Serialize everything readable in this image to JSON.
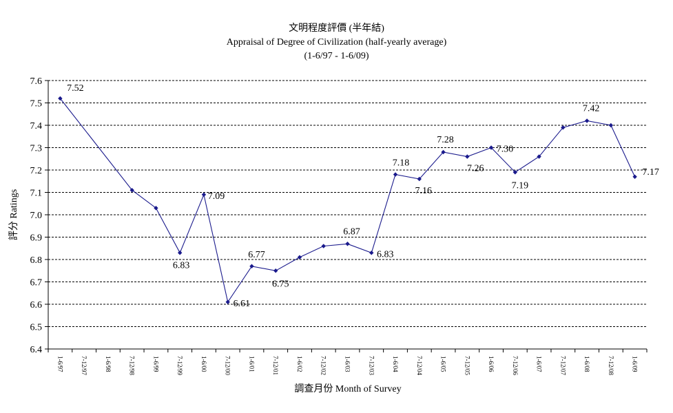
{
  "chart_data": {
    "type": "line",
    "title": "文明程度評價 (半年結)",
    "subtitle": "Appraisal of Degree of Civilization (half-yearly average)",
    "period": "(1-6/97 - 1-6/09)",
    "xlabel": "調查月份 Month of Survey",
    "ylabel": "評分 Ratings",
    "ylim": [
      6.4,
      7.6
    ],
    "yticks": [
      "6.4",
      "6.5",
      "6.6",
      "6.7",
      "6.8",
      "6.9",
      "7.0",
      "7.1",
      "7.2",
      "7.3",
      "7.4",
      "7.5",
      "7.6"
    ],
    "grid": true,
    "categories": [
      "1-6/97",
      "7-12/97",
      "1-6/98",
      "7-12/98",
      "1-6/99",
      "7-12/99",
      "1-6/00",
      "7-12/00",
      "1-6/01",
      "7-12/01",
      "1-6/02",
      "7-12/02",
      "1-6/03",
      "7-12/03",
      "1-6/04",
      "7-12/04",
      "1-6/05",
      "7-12/05",
      "1-6/06",
      "7-12/06",
      "1-6/07",
      "7-12/07",
      "1-6/08",
      "7-12/08",
      "1-6/09"
    ],
    "series": [
      {
        "name": "Appraisal of Degree of Civilization",
        "color": "#1a1a8c",
        "values": [
          7.52,
          null,
          null,
          7.11,
          7.03,
          6.83,
          7.09,
          6.61,
          6.77,
          6.75,
          6.81,
          6.86,
          6.87,
          6.83,
          7.18,
          7.16,
          7.28,
          7.26,
          7.3,
          7.19,
          7.26,
          7.39,
          7.42,
          7.4,
          7.17
        ]
      }
    ],
    "data_labels": [
      {
        "index": 0,
        "text": "7.52"
      },
      {
        "index": 5,
        "text": "6.83"
      },
      {
        "index": 6,
        "text": "7.09"
      },
      {
        "index": 7,
        "text": "6.61"
      },
      {
        "index": 8,
        "text": "6.77"
      },
      {
        "index": 9,
        "text": "6.75"
      },
      {
        "index": 12,
        "text": "6.87"
      },
      {
        "index": 13,
        "text": "6.83"
      },
      {
        "index": 14,
        "text": "7.18"
      },
      {
        "index": 15,
        "text": "7.16"
      },
      {
        "index": 16,
        "text": "7.28"
      },
      {
        "index": 17,
        "text": "7.26"
      },
      {
        "index": 18,
        "text": "7.30"
      },
      {
        "index": 19,
        "text": "7.19"
      },
      {
        "index": 22,
        "text": "7.42"
      },
      {
        "index": 24,
        "text": "7.17"
      }
    ]
  }
}
